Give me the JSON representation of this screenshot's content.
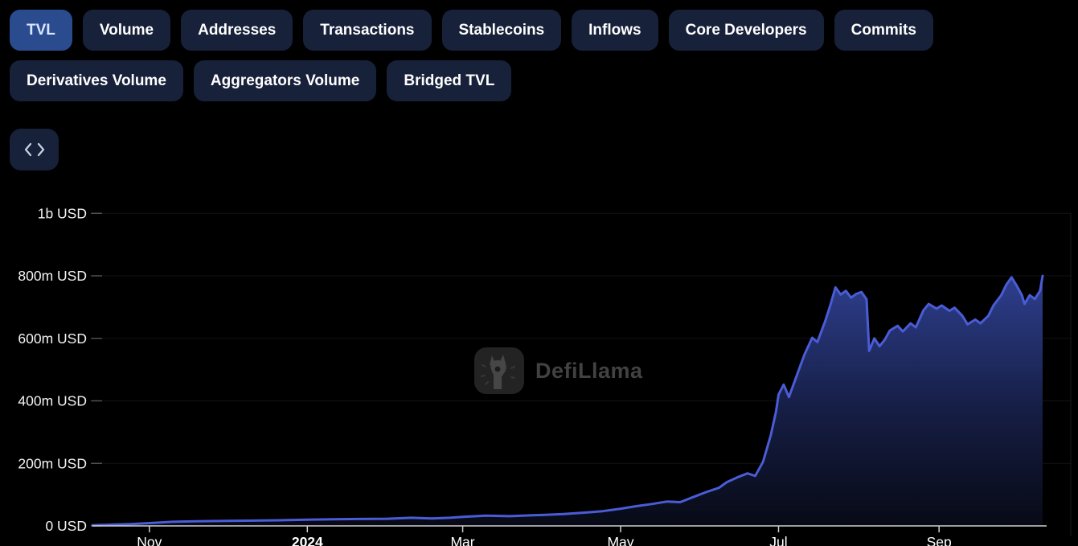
{
  "tabs": {
    "row1": [
      {
        "label": "TVL",
        "active": true
      },
      {
        "label": "Volume",
        "active": false
      },
      {
        "label": "Addresses",
        "active": false
      },
      {
        "label": "Transactions",
        "active": false
      },
      {
        "label": "Stablecoins",
        "active": false
      },
      {
        "label": "Inflows",
        "active": false
      },
      {
        "label": "Core Developers",
        "active": false
      },
      {
        "label": "Commits",
        "active": false
      }
    ],
    "row2": [
      {
        "label": "Derivatives Volume",
        "active": false
      },
      {
        "label": "Aggregators Volume",
        "active": false
      },
      {
        "label": "Bridged TVL",
        "active": false
      }
    ]
  },
  "embed_button": {
    "icon": "code-embed-icon"
  },
  "watermark": {
    "text": "DefiLlama"
  },
  "colors": {
    "background": "#000000",
    "tab_inactive_bg": "#18213a",
    "tab_active_bg": "#2b4b8f",
    "tab_active_text": "#d9e6ff",
    "line": "#4a5cd6",
    "area_top": "#2e3f8e",
    "area_bottom": "#070a15",
    "axis": "#cfcfcf",
    "grid": "rgba(255,255,255,0.07)",
    "y_label": "#f2f2f2",
    "x_label": "#ffffff",
    "watermark_text": "#484848"
  },
  "chart_data": {
    "type": "area",
    "title": "TVL",
    "unit": "USD",
    "legend_position": "none",
    "grid": true,
    "ylim": [
      0,
      1000
    ],
    "x_range": [
      "2023-10-10",
      "2024-10-11"
    ],
    "y_ticks": [
      {
        "value": 0,
        "label": "0 USD"
      },
      {
        "value": 200,
        "label": "200m USD"
      },
      {
        "value": 400,
        "label": "400m USD"
      },
      {
        "value": 600,
        "label": "600m USD"
      },
      {
        "value": 800,
        "label": "800m USD"
      },
      {
        "value": 1000,
        "label": "1b USD"
      }
    ],
    "x_ticks": [
      {
        "date": "2023-11-01",
        "label": "Nov",
        "bold": false
      },
      {
        "date": "2024-01-01",
        "label": "2024",
        "bold": true
      },
      {
        "date": "2024-03-01",
        "label": "Mar",
        "bold": false
      },
      {
        "date": "2024-05-01",
        "label": "May",
        "bold": false
      },
      {
        "date": "2024-07-01",
        "label": "Jul",
        "bold": false
      },
      {
        "date": "2024-09-01",
        "label": "Sep",
        "bold": false
      }
    ],
    "series": [
      {
        "name": "TVL (m USD)",
        "color": "#4a5cd6",
        "points": [
          [
            "2023-10-10",
            2
          ],
          [
            "2023-10-18",
            4
          ],
          [
            "2023-10-25",
            6
          ],
          [
            "2023-11-01",
            9
          ],
          [
            "2023-11-10",
            13
          ],
          [
            "2023-11-19",
            15
          ],
          [
            "2023-12-01",
            16
          ],
          [
            "2023-12-12",
            17
          ],
          [
            "2023-12-21",
            18
          ],
          [
            "2024-01-01",
            20
          ],
          [
            "2024-01-11",
            21
          ],
          [
            "2024-01-21",
            22
          ],
          [
            "2024-02-01",
            23
          ],
          [
            "2024-02-10",
            26
          ],
          [
            "2024-02-18",
            24
          ],
          [
            "2024-02-25",
            26
          ],
          [
            "2024-03-01",
            29
          ],
          [
            "2024-03-10",
            33
          ],
          [
            "2024-03-19",
            31
          ],
          [
            "2024-03-28",
            34
          ],
          [
            "2024-04-01",
            35
          ],
          [
            "2024-04-09",
            38
          ],
          [
            "2024-04-18",
            43
          ],
          [
            "2024-04-24",
            47
          ],
          [
            "2024-05-01",
            55
          ],
          [
            "2024-05-07",
            63
          ],
          [
            "2024-05-13",
            70
          ],
          [
            "2024-05-19",
            78
          ],
          [
            "2024-05-24",
            76
          ],
          [
            "2024-05-29",
            92
          ],
          [
            "2024-06-03",
            108
          ],
          [
            "2024-06-08",
            122
          ],
          [
            "2024-06-11",
            140
          ],
          [
            "2024-06-15",
            155
          ],
          [
            "2024-06-19",
            168
          ],
          [
            "2024-06-22",
            160
          ],
          [
            "2024-06-25",
            205
          ],
          [
            "2024-06-28",
            290
          ],
          [
            "2024-06-30",
            365
          ],
          [
            "2024-07-01",
            420
          ],
          [
            "2024-07-03",
            452
          ],
          [
            "2024-07-05",
            412
          ],
          [
            "2024-07-08",
            480
          ],
          [
            "2024-07-11",
            548
          ],
          [
            "2024-07-14",
            602
          ],
          [
            "2024-07-16",
            588
          ],
          [
            "2024-07-19",
            655
          ],
          [
            "2024-07-21",
            706
          ],
          [
            "2024-07-23",
            763
          ],
          [
            "2024-07-25",
            740
          ],
          [
            "2024-07-27",
            752
          ],
          [
            "2024-07-29",
            730
          ],
          [
            "2024-07-31",
            742
          ],
          [
            "2024-08-02",
            748
          ],
          [
            "2024-08-04",
            725
          ],
          [
            "2024-08-05",
            560
          ],
          [
            "2024-08-07",
            600
          ],
          [
            "2024-08-09",
            575
          ],
          [
            "2024-08-11",
            595
          ],
          [
            "2024-08-13",
            625
          ],
          [
            "2024-08-16",
            640
          ],
          [
            "2024-08-18",
            622
          ],
          [
            "2024-08-21",
            648
          ],
          [
            "2024-08-23",
            635
          ],
          [
            "2024-08-26",
            690
          ],
          [
            "2024-08-28",
            710
          ],
          [
            "2024-08-31",
            695
          ],
          [
            "2024-09-02",
            705
          ],
          [
            "2024-09-05",
            688
          ],
          [
            "2024-09-07",
            698
          ],
          [
            "2024-09-10",
            672
          ],
          [
            "2024-09-12",
            645
          ],
          [
            "2024-09-15",
            660
          ],
          [
            "2024-09-17",
            648
          ],
          [
            "2024-09-20",
            672
          ],
          [
            "2024-09-22",
            705
          ],
          [
            "2024-09-25",
            738
          ],
          [
            "2024-09-27",
            772
          ],
          [
            "2024-09-29",
            795
          ],
          [
            "2024-10-01",
            768
          ],
          [
            "2024-10-03",
            738
          ],
          [
            "2024-10-04",
            710
          ],
          [
            "2024-10-06",
            738
          ],
          [
            "2024-10-08",
            726
          ],
          [
            "2024-10-10",
            752
          ],
          [
            "2024-10-11",
            800
          ]
        ]
      }
    ]
  }
}
